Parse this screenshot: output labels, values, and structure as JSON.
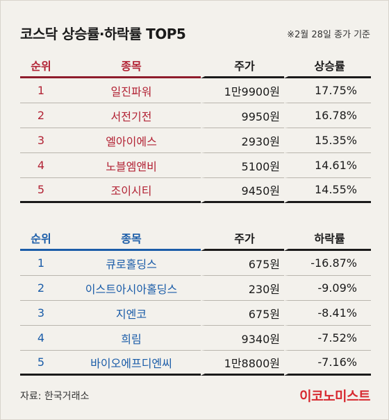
{
  "header": {
    "title": "코스닥 상승률·하락률 TOP5",
    "note": "※2월 28일 종가 기준"
  },
  "colors": {
    "gainers_accent": "#b22234",
    "losers_accent": "#1a5ca8",
    "logo": "#d7282f"
  },
  "gainers": {
    "columns": [
      "순위",
      "종목",
      "주가",
      "상승률"
    ],
    "rows": [
      {
        "rank": "1",
        "name": "일진파워",
        "price": "1만9900원",
        "rate": "17.75%"
      },
      {
        "rank": "2",
        "name": "서전기전",
        "price": "9950원",
        "rate": "16.78%"
      },
      {
        "rank": "3",
        "name": "엘아이에스",
        "price": "2930원",
        "rate": "15.35%"
      },
      {
        "rank": "4",
        "name": "노블엠앤비",
        "price": "5100원",
        "rate": "14.61%"
      },
      {
        "rank": "5",
        "name": "조이시티",
        "price": "9450원",
        "rate": "14.55%"
      }
    ]
  },
  "losers": {
    "columns": [
      "순위",
      "종목",
      "주가",
      "하락률"
    ],
    "rows": [
      {
        "rank": "1",
        "name": "큐로홀딩스",
        "price": "675원",
        "rate": "-16.87%"
      },
      {
        "rank": "2",
        "name": "이스트아시아홀딩스",
        "price": "230원",
        "rate": "-9.09%"
      },
      {
        "rank": "3",
        "name": "지엔코",
        "price": "675원",
        "rate": "-8.41%"
      },
      {
        "rank": "4",
        "name": "희림",
        "price": "9340원",
        "rate": "-7.52%"
      },
      {
        "rank": "5",
        "name": "바이오에프디엔씨",
        "price": "1만8800원",
        "rate": "-7.16%"
      }
    ]
  },
  "footer": {
    "source": "자료: 한국거래소",
    "logo": "이코노미스트"
  }
}
